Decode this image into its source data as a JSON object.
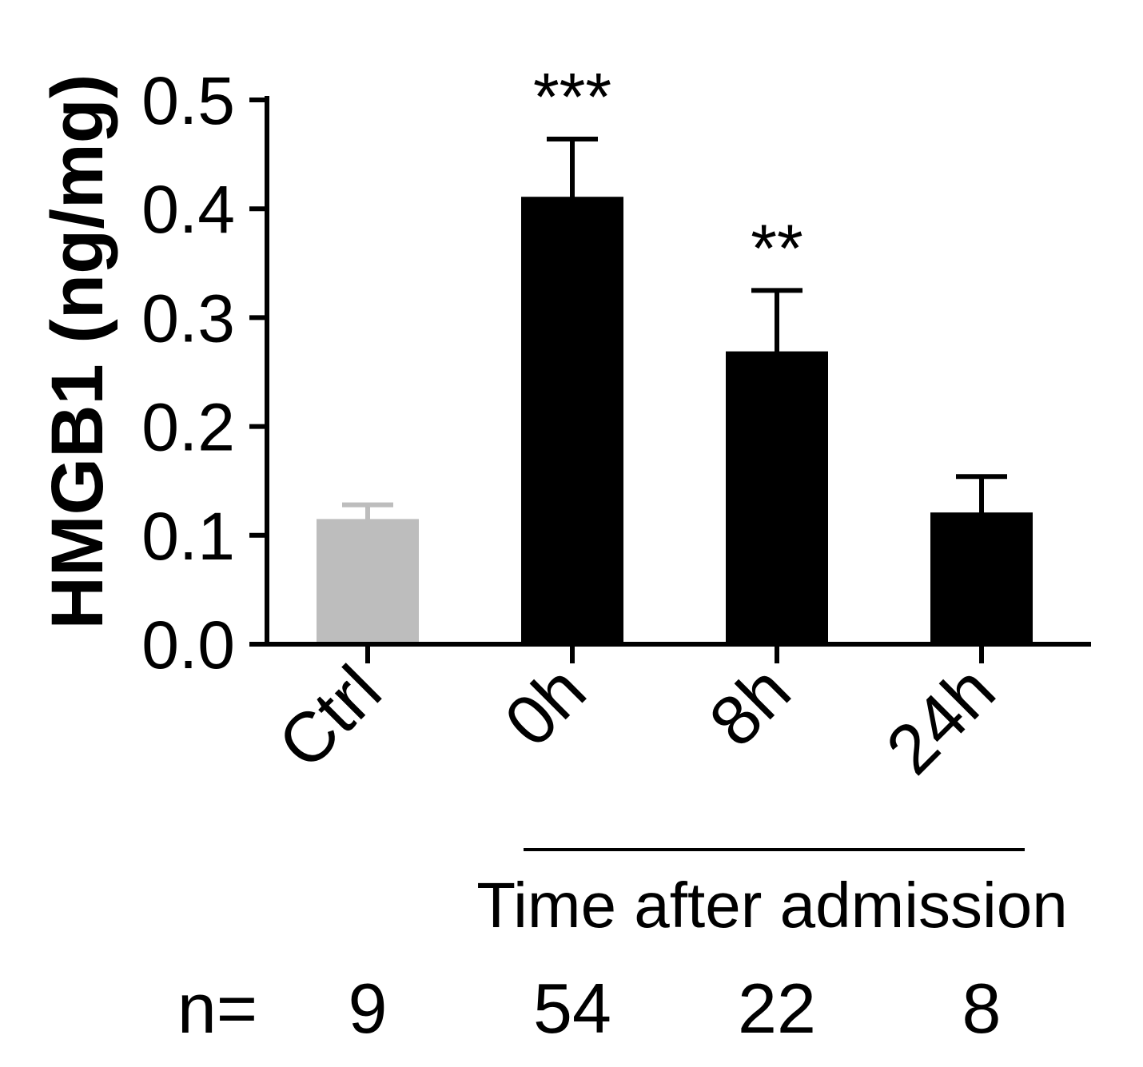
{
  "chart_data": {
    "type": "bar",
    "ylabel": "HMGB1 (ng/mg)",
    "ylim": [
      0,
      0.5
    ],
    "yticks": [
      "0.0",
      "0.1",
      "0.2",
      "0.3",
      "0.4",
      "0.5"
    ],
    "categories": [
      "Ctrl",
      "0h",
      "8h",
      "24h"
    ],
    "values": [
      0.115,
      0.411,
      0.269,
      0.121
    ],
    "errors": [
      0.013,
      0.053,
      0.056,
      0.033
    ],
    "colors": [
      "#bdbdbd",
      "#000000",
      "#000000",
      "#000000"
    ],
    "significance": [
      "",
      "***",
      "**",
      ""
    ],
    "group_label": "Time after admission",
    "n_label": "n=",
    "n_values": [
      "9",
      "54",
      "22",
      "8"
    ]
  }
}
